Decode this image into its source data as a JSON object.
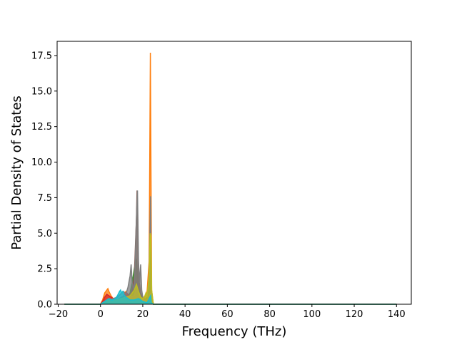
{
  "chart_data": {
    "type": "line",
    "title": "",
    "xlabel": "Frequency (THz)",
    "ylabel": "Partial Density of States",
    "xlim": [
      -20.5,
      147
    ],
    "ylim": [
      0,
      18.5
    ],
    "xticks": [
      -20,
      0,
      20,
      40,
      60,
      80,
      100,
      120,
      140
    ],
    "yticks": [
      0.0,
      2.5,
      5.0,
      7.5,
      10.0,
      12.5,
      15.0,
      17.5
    ],
    "xtick_labels": [
      "−20",
      "0",
      "20",
      "40",
      "60",
      "80",
      "100",
      "120",
      "140"
    ],
    "ytick_labels": [
      "0.0",
      "2.5",
      "5.0",
      "7.5",
      "10.0",
      "12.5",
      "15.0",
      "17.5"
    ],
    "grid": false,
    "legend": "none",
    "series": [
      {
        "color": "#1f77b4",
        "x": [
          -17,
          0,
          1,
          2,
          3,
          4,
          5,
          6,
          7,
          8,
          9,
          10,
          11,
          12,
          13,
          14,
          15,
          16,
          17,
          18,
          19,
          20,
          21,
          22,
          23,
          23.7,
          24,
          25,
          30,
          140
        ],
        "y": [
          0,
          0,
          0.1,
          0.3,
          0.2,
          0.3,
          0.15,
          0.2,
          0.1,
          0.3,
          0.2,
          0.5,
          0.3,
          0.2,
          0.6,
          0.3,
          0.5,
          0.8,
          0.6,
          0.4,
          0.3,
          0.2,
          0.1,
          0.2,
          0.8,
          1.6,
          0.3,
          0,
          0,
          0
        ]
      },
      {
        "color": "#ff7f0e",
        "x": [
          -17,
          0,
          1,
          2,
          3,
          3.5,
          4,
          5,
          6,
          7,
          8,
          9,
          10,
          11,
          12,
          13,
          14,
          15,
          16,
          17,
          18,
          19,
          20,
          21,
          22,
          23,
          23.3,
          23.6,
          23.9,
          24.2,
          25,
          30,
          140
        ],
        "y": [
          0,
          0,
          0.3,
          0.8,
          1.0,
          1.1,
          0.9,
          0.6,
          0.4,
          0.3,
          0.3,
          0.4,
          0.5,
          0.6,
          0.9,
          0.7,
          0.5,
          0.7,
          1.2,
          0.8,
          0.6,
          0.4,
          0.3,
          0.5,
          0.8,
          3.0,
          10.0,
          17.7,
          9.0,
          1.0,
          0,
          0,
          0
        ]
      },
      {
        "color": "#2ca02c",
        "x": [
          -17,
          0,
          2,
          4,
          6,
          8,
          10,
          12,
          13,
          14,
          15,
          16,
          17,
          17.5,
          18,
          19,
          20,
          21,
          22,
          23,
          23.7,
          24,
          25,
          30,
          140
        ],
        "y": [
          0,
          0,
          0.2,
          0.3,
          0.2,
          0.3,
          0.5,
          0.4,
          0.6,
          0.8,
          1.5,
          2.5,
          3.2,
          2.0,
          1.2,
          0.6,
          0.4,
          0.3,
          0.5,
          1.5,
          4.8,
          1.0,
          0,
          0,
          0
        ]
      },
      {
        "color": "#d62728",
        "x": [
          -17,
          0,
          1,
          2,
          3,
          4,
          5,
          6,
          7,
          8,
          9,
          10,
          11,
          12,
          13,
          14,
          15,
          16,
          17,
          18,
          19,
          20,
          22,
          23.7,
          24,
          25,
          30,
          140
        ],
        "y": [
          0,
          0,
          0.2,
          0.5,
          0.7,
          0.6,
          0.5,
          0.4,
          0.4,
          0.3,
          0.3,
          0.4,
          0.6,
          0.8,
          0.7,
          0.5,
          0.4,
          0.6,
          0.9,
          0.5,
          0.3,
          0.2,
          0.2,
          0.8,
          0.2,
          0,
          0,
          0
        ]
      },
      {
        "color": "#9467bd",
        "x": [
          -17,
          0,
          2,
          4,
          6,
          8,
          10,
          12,
          14,
          16,
          17,
          18,
          20,
          22,
          23.7,
          24,
          25,
          30,
          140
        ],
        "y": [
          0,
          0,
          0.2,
          0.4,
          0.3,
          0.3,
          0.4,
          0.5,
          0.6,
          0.7,
          1.0,
          0.6,
          0.3,
          0.2,
          1.0,
          0.2,
          0,
          0,
          0
        ]
      },
      {
        "color": "#8c564b",
        "x": [
          -17,
          0,
          2,
          4,
          6,
          8,
          10,
          12,
          14,
          15,
          16,
          16.5,
          17,
          17.3,
          17.6,
          18,
          19,
          20,
          22,
          23.7,
          24,
          25,
          30,
          140
        ],
        "y": [
          0,
          0,
          0.1,
          0.3,
          0.4,
          0.3,
          0.4,
          0.5,
          0.6,
          1.0,
          2.0,
          4.0,
          6.0,
          8.0,
          6.0,
          2.0,
          0.8,
          0.4,
          0.2,
          1.2,
          0.2,
          0,
          0,
          0
        ]
      },
      {
        "color": "#e377c2",
        "x": [
          -17,
          0,
          2,
          4,
          6,
          8,
          10,
          12,
          14,
          16,
          17,
          18,
          20,
          22,
          23.7,
          24,
          25,
          30,
          140
        ],
        "y": [
          0,
          0,
          0.1,
          0.3,
          0.3,
          0.2,
          0.3,
          0.4,
          0.5,
          0.6,
          1.2,
          0.7,
          0.3,
          0.2,
          0.8,
          0.2,
          0,
          0,
          0
        ]
      },
      {
        "color": "#7f7f7f",
        "x": [
          -17,
          0,
          2,
          4,
          6,
          8,
          10,
          11,
          12,
          13,
          14,
          14.5,
          15,
          16,
          17,
          17.5,
          18,
          18.5,
          19,
          19.5,
          20,
          22,
          23,
          23.7,
          24,
          25,
          30,
          140
        ],
        "y": [
          0,
          0,
          0.2,
          0.3,
          0.4,
          0.5,
          0.8,
          0.9,
          0.7,
          1.2,
          2.0,
          2.8,
          1.5,
          1.0,
          6.0,
          8.0,
          3.0,
          1.5,
          2.8,
          1.0,
          0.5,
          0.3,
          2.0,
          7.6,
          1.0,
          0,
          0,
          0
        ]
      },
      {
        "color": "#bcbd22",
        "x": [
          -17,
          0,
          2,
          4,
          6,
          8,
          10,
          12,
          14,
          15,
          16,
          17,
          18,
          19,
          20,
          21,
          21.5,
          22,
          23,
          23.5,
          23.8,
          24.2,
          25,
          30,
          140
        ],
        "y": [
          0,
          0,
          0.2,
          0.3,
          0.3,
          0.3,
          0.4,
          0.5,
          0.6,
          0.8,
          1.0,
          1.4,
          0.9,
          0.5,
          0.4,
          0.6,
          0.8,
          0.5,
          2.0,
          5.0,
          4.8,
          1.0,
          0,
          0,
          0
        ]
      },
      {
        "color": "#17becf",
        "x": [
          -17,
          0,
          1,
          2,
          3,
          4,
          5,
          6,
          7,
          8,
          9,
          9.5,
          10,
          10.5,
          11,
          12,
          13,
          14,
          16,
          18,
          20,
          22,
          23.7,
          24,
          25,
          30,
          140
        ],
        "y": [
          0,
          0,
          0.1,
          0.2,
          0.3,
          0.4,
          0.3,
          0.3,
          0.4,
          0.6,
          0.9,
          1.0,
          0.8,
          0.9,
          0.7,
          0.5,
          0.4,
          0.3,
          0.3,
          0.4,
          0.2,
          0.1,
          0.6,
          0.1,
          0,
          0,
          0
        ]
      }
    ]
  }
}
